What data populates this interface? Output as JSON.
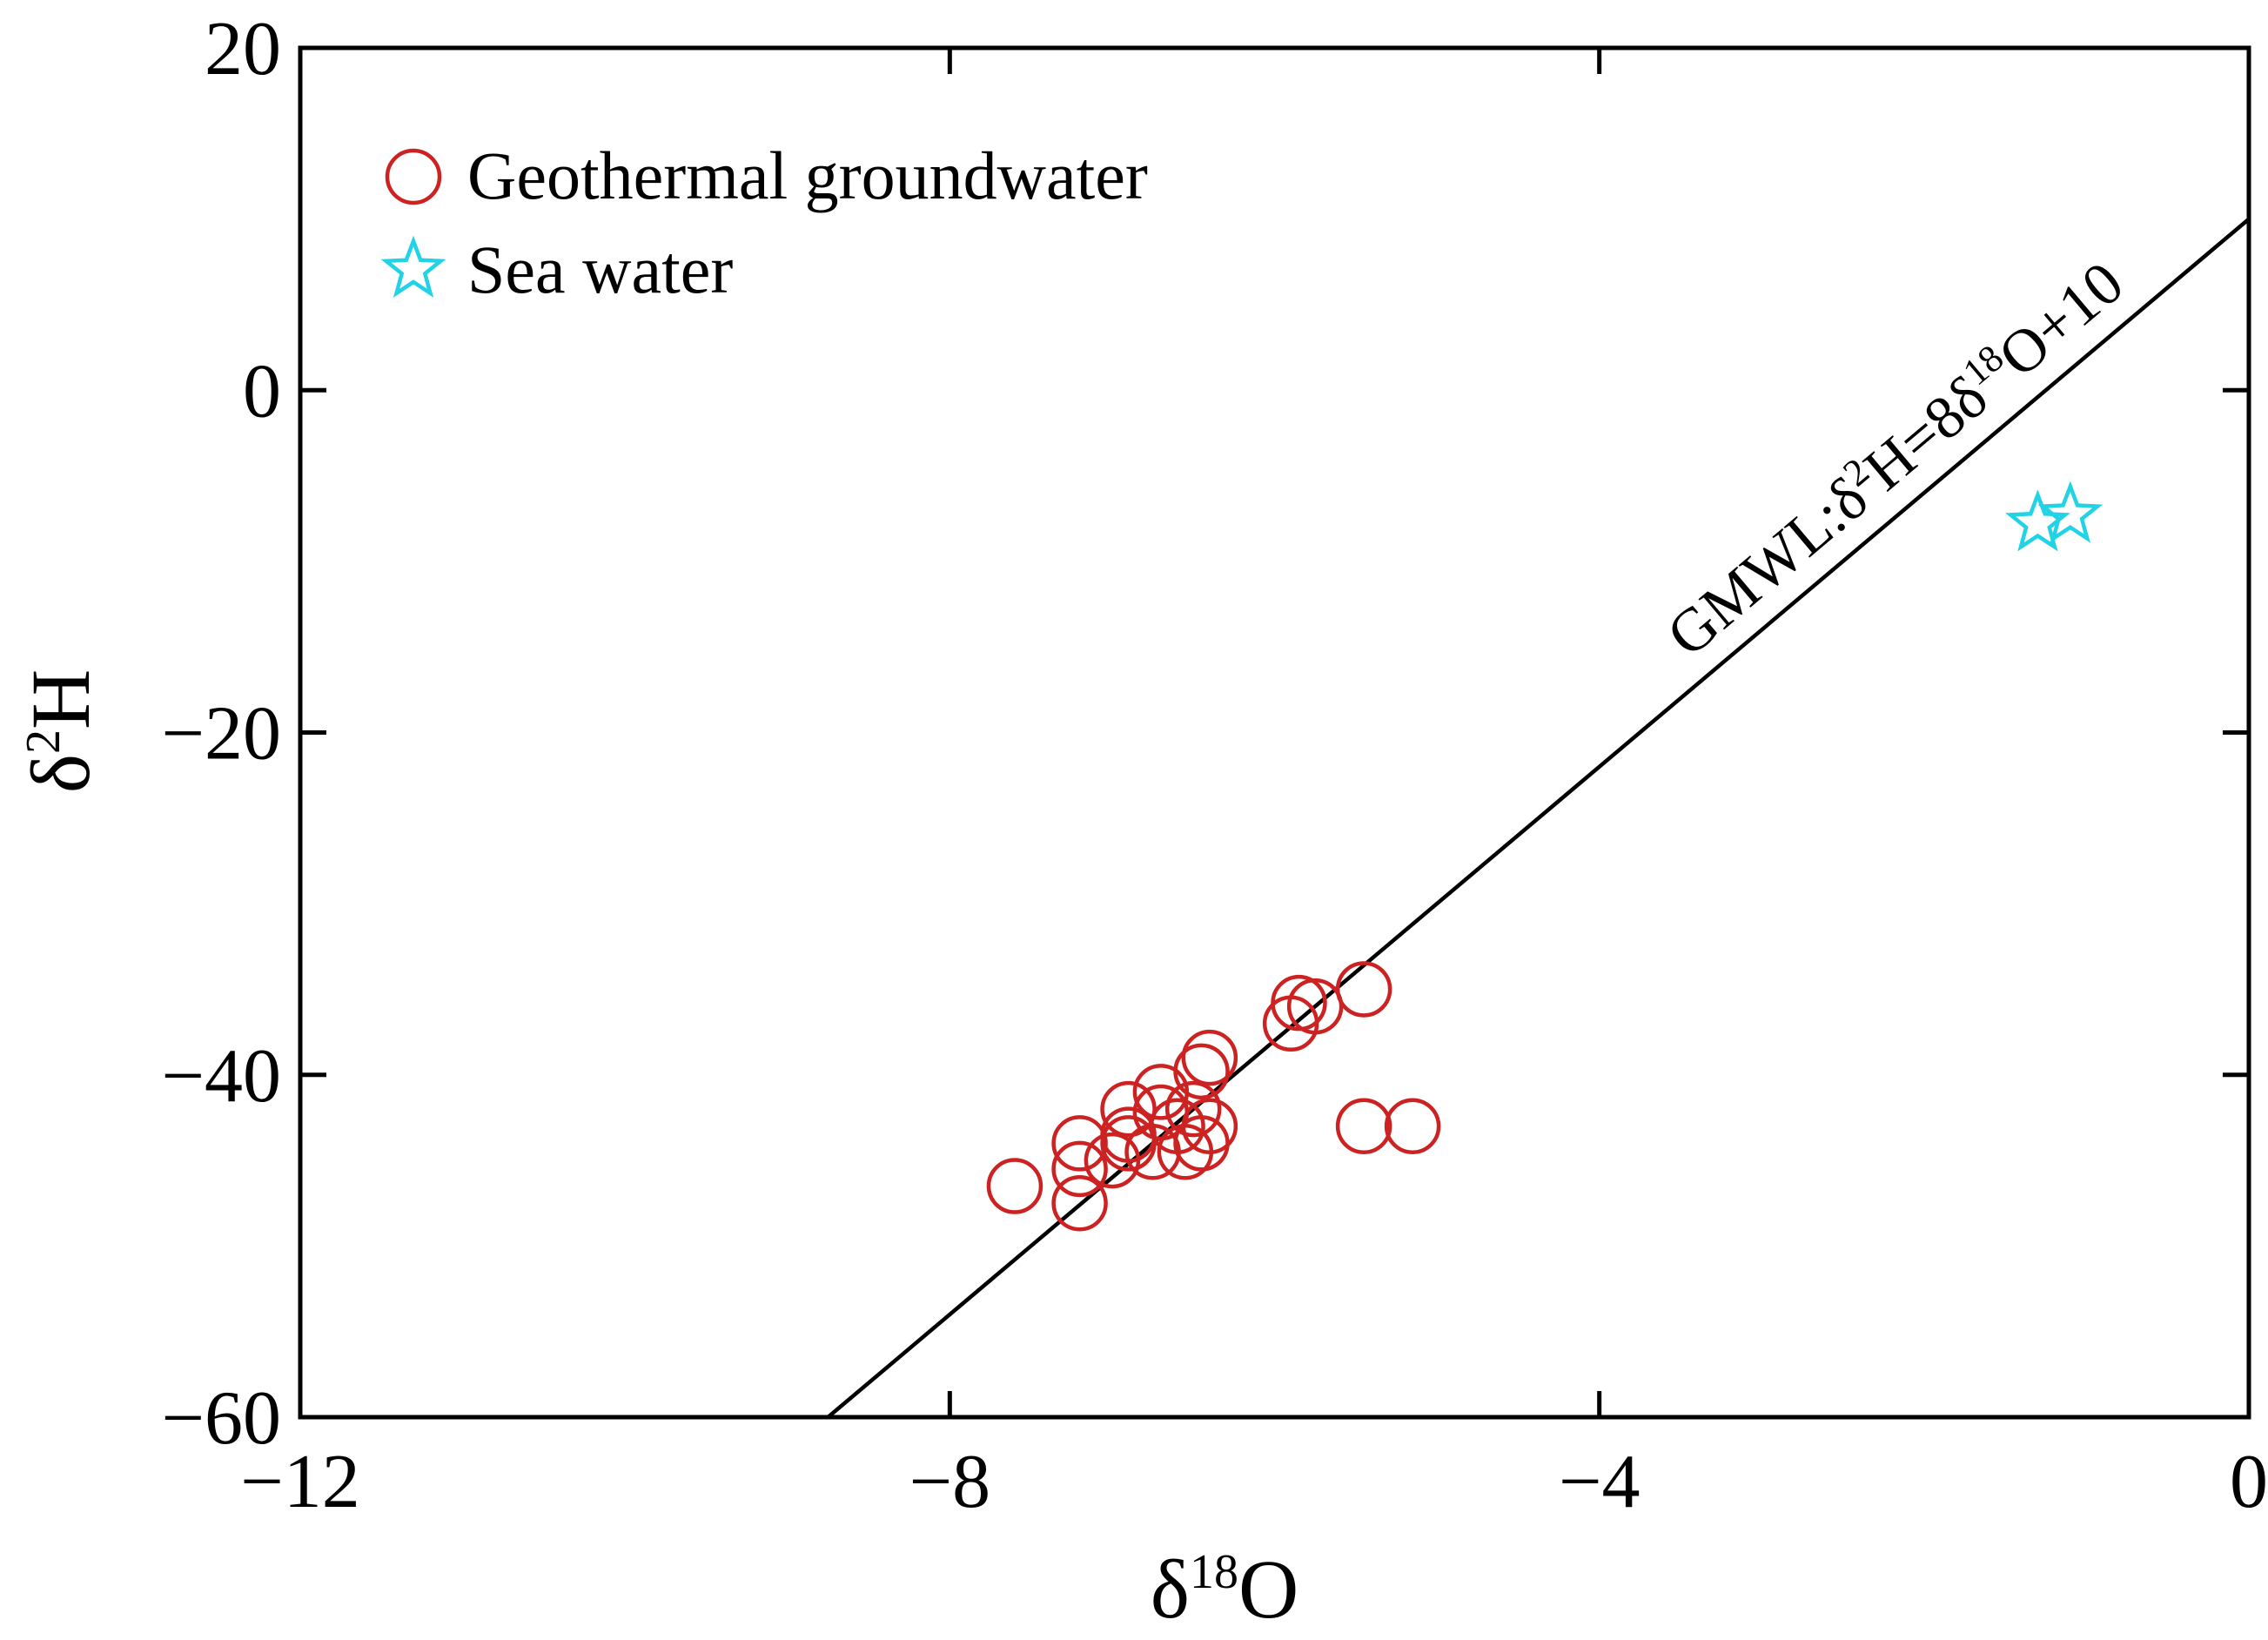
{
  "chart_data": {
    "type": "scatter",
    "title": "",
    "xlabel": "δ18O",
    "ylabel": "δ2H",
    "xlabel_base": "δ",
    "xlabel_sup": "18",
    "xlabel_tail": "O",
    "ylabel_base": "δ",
    "ylabel_sup": "2",
    "ylabel_tail": "H",
    "xlim": [
      -12,
      0
    ],
    "ylim": [
      -60,
      20
    ],
    "xticks": [
      -12,
      -8,
      -4,
      0
    ],
    "yticks": [
      -60,
      -40,
      -20,
      0,
      20
    ],
    "xtick_labels": [
      "−12",
      "−8",
      "−4",
      "0"
    ],
    "ytick_labels": [
      "−60",
      "−40",
      "−20",
      "0",
      "20"
    ],
    "grid": false,
    "legend_position": "top-left",
    "line": {
      "name": "GMWL",
      "slope": 8,
      "intercept": 10,
      "color": "#000000",
      "label_parts": [
        "GMWL:δ",
        "2",
        "H=8δ",
        "18",
        "O+10"
      ]
    },
    "series": [
      {
        "name": "Geothermal groundwater",
        "marker": "circle",
        "color": "#cc2222",
        "points": [
          {
            "x": -7.6,
            "y": -46.5
          },
          {
            "x": -7.2,
            "y": -47.5
          },
          {
            "x": -7.2,
            "y": -45.5
          },
          {
            "x": -7.2,
            "y": -44
          },
          {
            "x": -7.0,
            "y": -45
          },
          {
            "x": -6.9,
            "y": -43.5
          },
          {
            "x": -6.9,
            "y": -42
          },
          {
            "x": -6.9,
            "y": -44
          },
          {
            "x": -6.75,
            "y": -44.5
          },
          {
            "x": -6.7,
            "y": -41
          },
          {
            "x": -6.6,
            "y": -43
          },
          {
            "x": -6.7,
            "y": -42.2
          },
          {
            "x": -6.55,
            "y": -44.5
          },
          {
            "x": -6.5,
            "y": -42
          },
          {
            "x": -6.45,
            "y": -44
          },
          {
            "x": -6.4,
            "y": -43
          },
          {
            "x": -6.4,
            "y": -39
          },
          {
            "x": -6.45,
            "y": -39.8
          },
          {
            "x": -5.9,
            "y": -37
          },
          {
            "x": -5.85,
            "y": -35.8
          },
          {
            "x": -5.75,
            "y": -36
          },
          {
            "x": -5.45,
            "y": -35
          },
          {
            "x": -5.45,
            "y": -43
          },
          {
            "x": -5.15,
            "y": -43
          }
        ]
      },
      {
        "name": "Sea water",
        "marker": "star",
        "color": "#22d3e6",
        "points": [
          {
            "x": -1.3,
            "y": -7.8
          },
          {
            "x": -1.1,
            "y": -7.3
          }
        ]
      }
    ]
  }
}
